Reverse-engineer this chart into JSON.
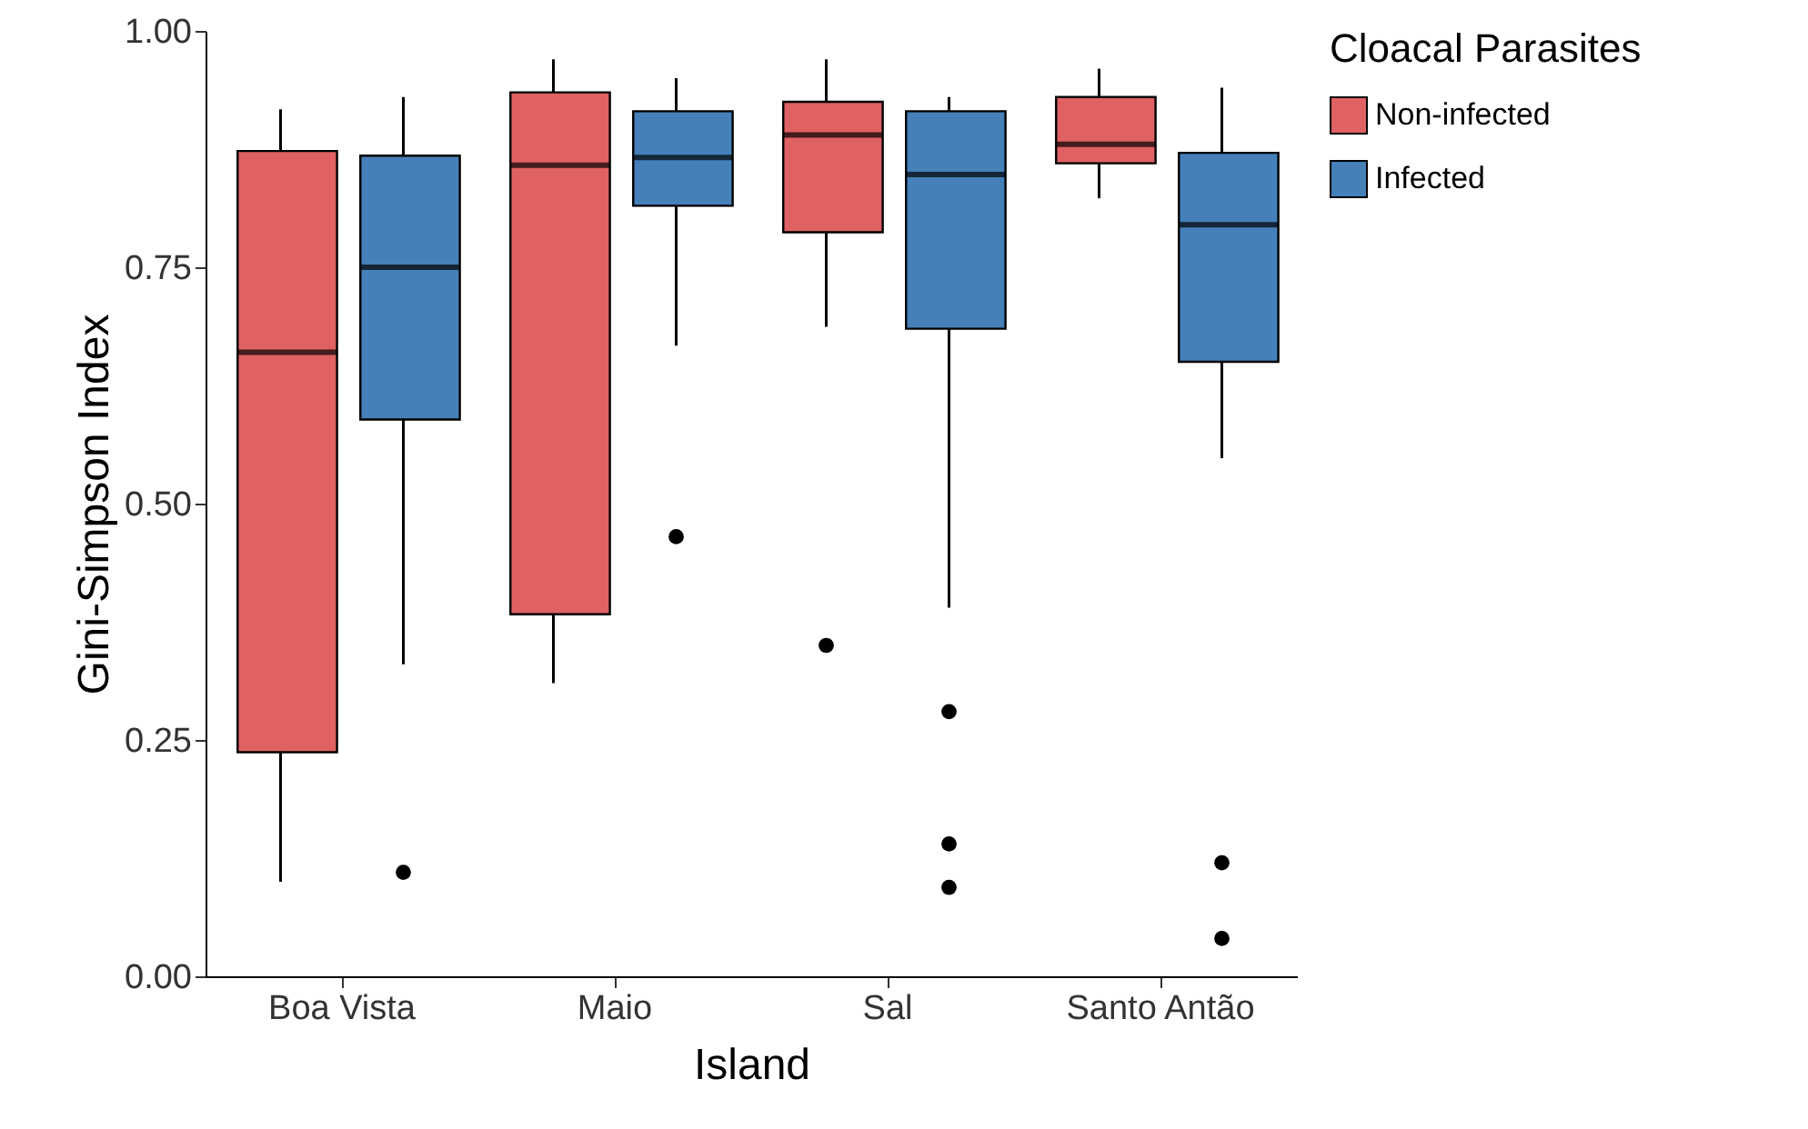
{
  "chart_data": {
    "type": "box",
    "xlabel": "Island",
    "ylabel": "Gini-Simpson Index",
    "legend_title": "Cloacal Parasites",
    "legend": "right",
    "grid": false,
    "categories": [
      "Boa Vista",
      "Maio",
      "Sal",
      "Santo Antão"
    ],
    "ylim": [
      0,
      1
    ],
    "yticks": [
      {
        "value": 0,
        "label": "0.00"
      },
      {
        "value": 0.25,
        "label": "0.25"
      },
      {
        "value": 0.5,
        "label": "0.50"
      },
      {
        "value": 0.75,
        "label": "0.75"
      },
      {
        "value": 1,
        "label": "1.00"
      }
    ],
    "series": [
      {
        "name": "Non-infected",
        "color": "#e06162",
        "boxes": [
          {
            "low": 0.1,
            "q1": 0.237,
            "median": 0.66,
            "q3": 0.873,
            "high": 0.917
          },
          {
            "low": 0.31,
            "q1": 0.383,
            "median": 0.858,
            "q3": 0.935,
            "high": 0.97
          },
          {
            "low": 0.687,
            "q1": 0.787,
            "median": 0.89,
            "q3": 0.925,
            "high": 0.97,
            "outliers": [
              0.35
            ]
          },
          {
            "low": 0.823,
            "q1": 0.86,
            "median": 0.88,
            "q3": 0.93,
            "high": 0.96
          }
        ]
      },
      {
        "name": "Infected",
        "color": "#4580b9",
        "boxes": [
          {
            "low": 0.33,
            "q1": 0.589,
            "median": 0.75,
            "q3": 0.868,
            "high": 0.93,
            "outliers": [
              0.11
            ]
          },
          {
            "low": 0.667,
            "q1": 0.815,
            "median": 0.866,
            "q3": 0.915,
            "high": 0.95,
            "outliers": [
              0.465
            ]
          },
          {
            "low": 0.39,
            "q1": 0.685,
            "median": 0.848,
            "q3": 0.915,
            "high": 0.93,
            "outliers": [
              0.28,
              0.14,
              0.094
            ]
          },
          {
            "low": 0.548,
            "q1": 0.65,
            "median": 0.795,
            "q3": 0.871,
            "high": 0.94,
            "outliers": [
              0.12,
              0.04
            ]
          }
        ]
      }
    ]
  }
}
